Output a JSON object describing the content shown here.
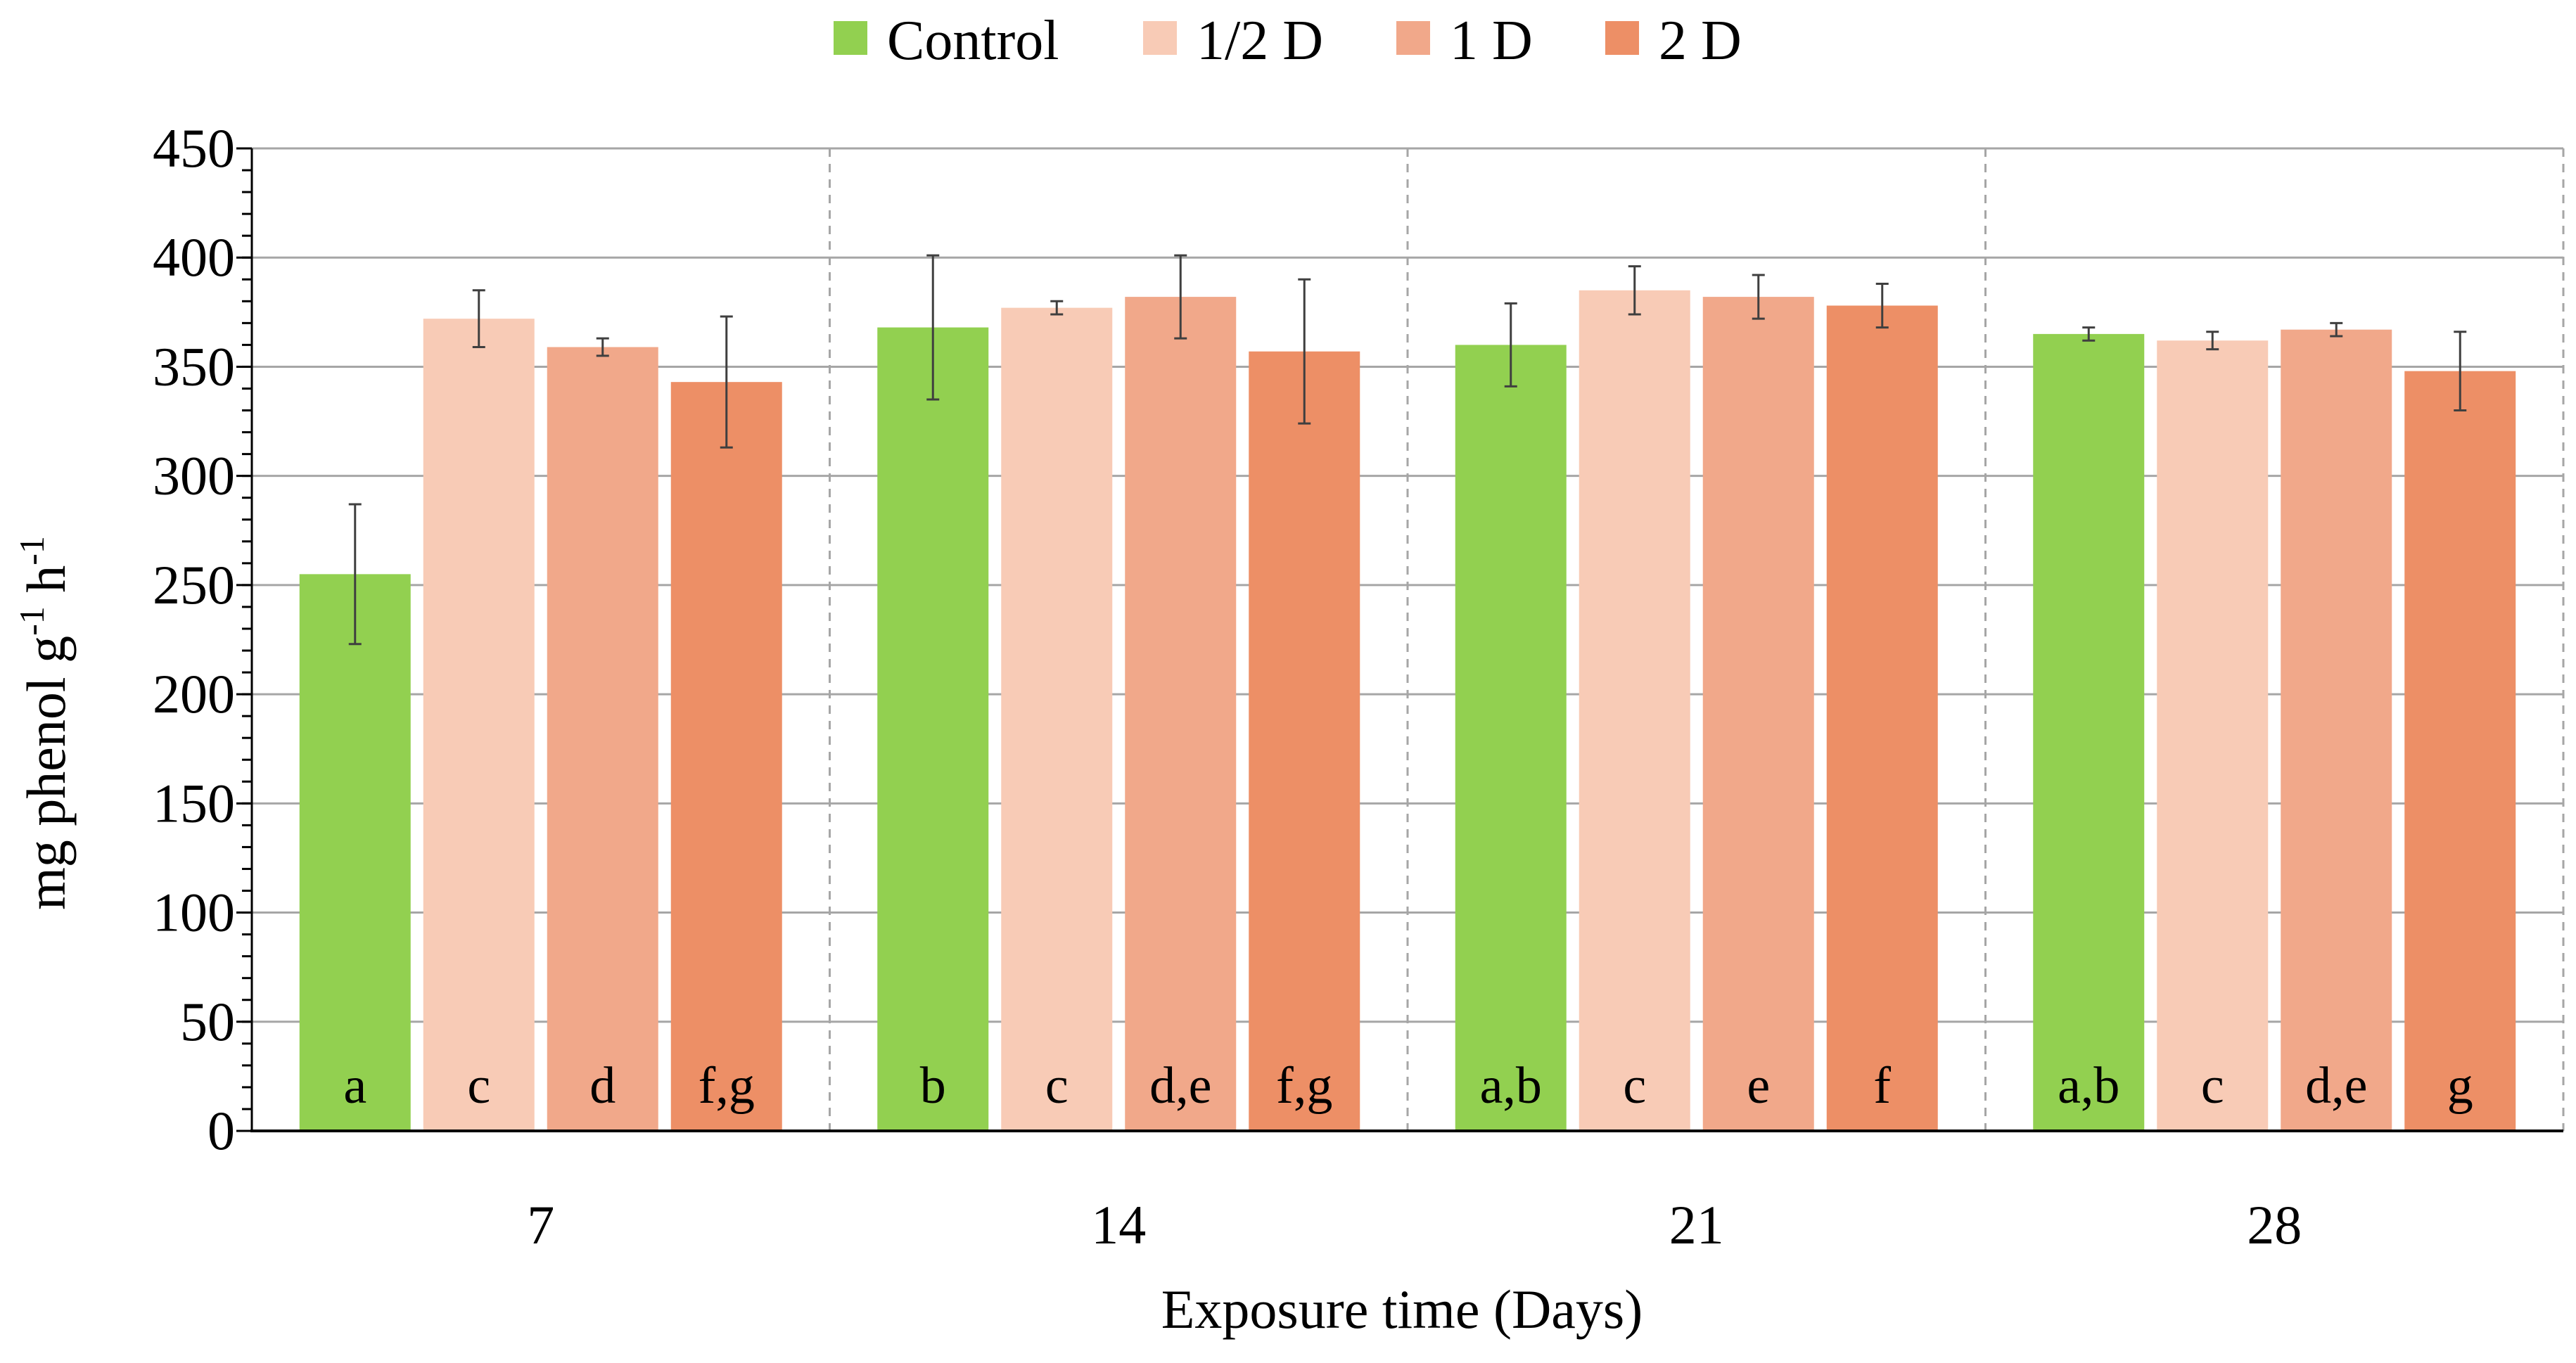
{
  "chart_data": {
    "type": "bar",
    "title": "",
    "xlabel": "Exposure time (Days)",
    "ylabel_main": "mg phenol g",
    "ylabel_sup1": "-1",
    "ylabel_mid": " h",
    "ylabel_sup2": "-1",
    "ylim": [
      0,
      450
    ],
    "yticks": [
      "0",
      "50",
      "100",
      "150",
      "200",
      "250",
      "300",
      "350",
      "400",
      "450"
    ],
    "ytick_values": [
      0,
      50,
      100,
      150,
      200,
      250,
      300,
      350,
      400,
      450
    ],
    "minor_tick_step": 10,
    "grid": true,
    "legend_position": "top-center",
    "categories": [
      "7",
      "14",
      "21",
      "28"
    ],
    "series": [
      {
        "name": "Control",
        "color": "#92d050",
        "values": [
          255,
          368,
          360,
          365
        ],
        "errors": [
          32,
          33,
          19,
          3
        ],
        "letters": [
          "a",
          "b",
          "a,b",
          "a,b"
        ]
      },
      {
        "name": "1/2 D",
        "color": "#f8cbb6",
        "values": [
          372,
          377,
          385,
          362
        ],
        "errors": [
          13,
          3,
          11,
          4
        ],
        "letters": [
          "c",
          "c",
          "c",
          "c"
        ]
      },
      {
        "name": "1 D",
        "color": "#f1a88a",
        "values": [
          359,
          382,
          382,
          367
        ],
        "errors": [
          4,
          19,
          10,
          3
        ],
        "letters": [
          "d",
          "d,e",
          "e",
          "d,e"
        ]
      },
      {
        "name": "2 D",
        "color": "#ed8f66",
        "values": [
          343,
          357,
          378,
          348
        ],
        "errors": [
          30,
          33,
          10,
          18
        ],
        "letters": [
          "f,g",
          "f,g",
          "f",
          "g"
        ]
      }
    ],
    "colors": {
      "gridline": "#a6a6a6",
      "separator": "#a6a6a6",
      "axis": "#000000",
      "errorbar": "#3f3f3f"
    }
  }
}
